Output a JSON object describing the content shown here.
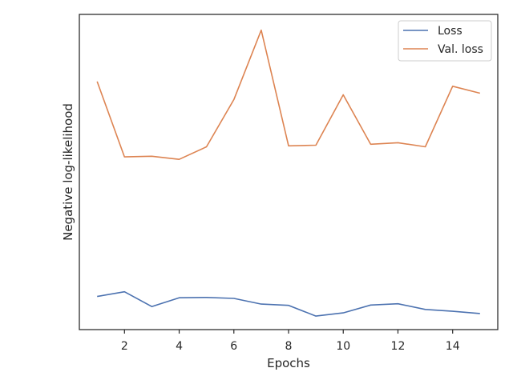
{
  "chart_data": {
    "type": "line",
    "title": "",
    "xlabel": "Epochs",
    "ylabel": "Negative log-likelihood",
    "x": [
      1,
      2,
      3,
      4,
      5,
      6,
      7,
      8,
      9,
      10,
      11,
      12,
      13,
      14,
      15
    ],
    "xticks": [
      2,
      4,
      6,
      8,
      10,
      12,
      14
    ],
    "xlim": [
      0.35,
      15.65
    ],
    "ylim": [
      0,
      1
    ],
    "yticks_shown": false,
    "grid": false,
    "legend_position": "top-right",
    "series": [
      {
        "name": "Loss",
        "color": "#4c72b0",
        "values": [
          0.105,
          0.12,
          0.073,
          0.101,
          0.102,
          0.099,
          0.081,
          0.077,
          0.043,
          0.053,
          0.078,
          0.082,
          0.064,
          0.058,
          0.051
        ]
      },
      {
        "name": "Val. loss",
        "color": "#dd8452",
        "values": [
          0.787,
          0.548,
          0.55,
          0.54,
          0.58,
          0.73,
          0.95,
          0.583,
          0.585,
          0.745,
          0.588,
          0.593,
          0.58,
          0.772,
          0.75
        ]
      }
    ]
  }
}
